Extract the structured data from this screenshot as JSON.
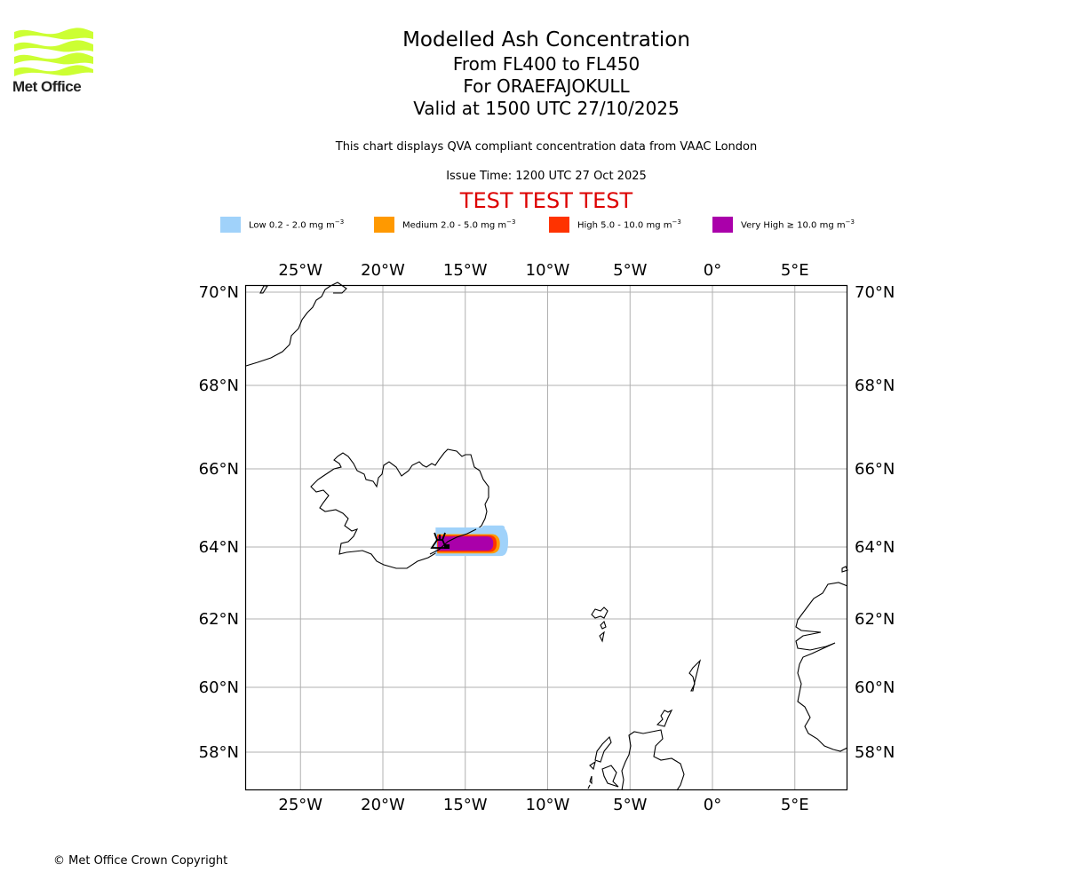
{
  "logo": {
    "text": "Met Office",
    "color": "#ccff33"
  },
  "titles": {
    "main": "Modelled Ash Concentration",
    "levels": "From FL400 to FL450",
    "volcano": "For ORAEFAJOKULL",
    "valid": "Valid at 1500 UTC 27/10/2025"
  },
  "notes": {
    "description": "This chart displays QVA compliant concentration data from VAAC London",
    "issue_time": "Issue Time: 1200 UTC 27 Oct 2025",
    "test_banner": "TEST TEST TEST"
  },
  "legend": [
    {
      "label": "Low 0.2 - 2.0 mg m",
      "exp": "−3",
      "color": "#a0d2fa"
    },
    {
      "label": "Medium 2.0 - 5.0 mg m",
      "exp": "−3",
      "color": "#ff9900"
    },
    {
      "label": "High 5.0 - 10.0 mg m",
      "exp": "−3",
      "color": "#ff3300"
    },
    {
      "label": "Very High ≥ 10.0 mg m",
      "exp": "−3",
      "color": "#aa00aa"
    }
  ],
  "chart_data": {
    "type": "map",
    "title": "Modelled Ash Concentration",
    "extent": {
      "lon": [
        -28.5,
        8.0
      ],
      "lat": [
        57.1,
        70.2
      ]
    },
    "grid": true,
    "x_ticks": [
      {
        "value": -25,
        "label": "25°W"
      },
      {
        "value": -20,
        "label": "20°W"
      },
      {
        "value": -15,
        "label": "15°W"
      },
      {
        "value": -10,
        "label": "10°W"
      },
      {
        "value": -5,
        "label": "5°W"
      },
      {
        "value": 0,
        "label": "0°"
      },
      {
        "value": 5,
        "label": "5°E"
      }
    ],
    "y_ticks": [
      {
        "value": 70,
        "label": "70°N"
      },
      {
        "value": 68,
        "label": "68°N"
      },
      {
        "value": 66,
        "label": "66°N"
      },
      {
        "value": 64,
        "label": "64°N"
      },
      {
        "value": 62,
        "label": "62°N"
      },
      {
        "value": 60,
        "label": "60°N"
      },
      {
        "value": 58,
        "label": "58°N"
      }
    ],
    "volcano": {
      "name": "ORAEFAJOKULL",
      "lon": -16.6,
      "lat": 64.0
    },
    "ash_levels": [
      {
        "level": "Low",
        "lon_min": -16.8,
        "lon_max": -12.4,
        "lat_min": 63.75,
        "lat_max": 64.5
      },
      {
        "level": "Medium",
        "lon_min": -16.7,
        "lon_max": -12.9,
        "lat_min": 63.82,
        "lat_max": 64.33
      },
      {
        "level": "High",
        "lon_min": -16.7,
        "lon_max": -13.1,
        "lat_min": 63.86,
        "lat_max": 64.3
      },
      {
        "level": "Very High",
        "lon_min": -16.65,
        "lon_max": -13.3,
        "lat_min": 63.9,
        "lat_max": 64.27
      }
    ]
  },
  "footer": {
    "copyright": "© Met Office Crown Copyright"
  }
}
